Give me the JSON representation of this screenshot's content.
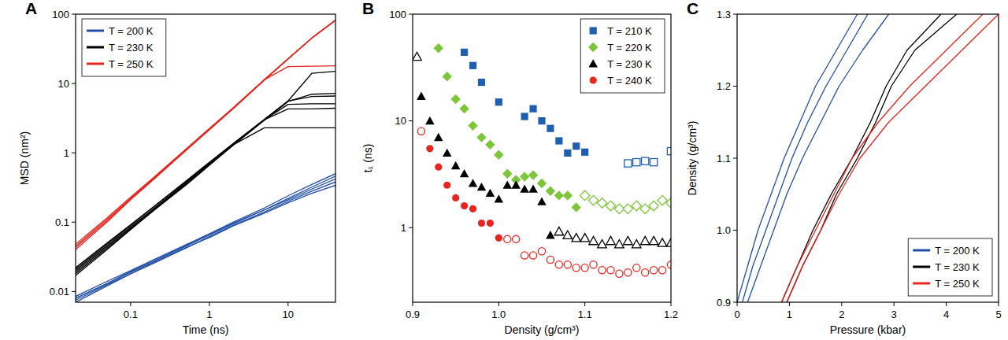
{
  "chart_data": [
    {
      "type": "line",
      "title": "A",
      "x_label": "Time (ns)",
      "y_label": "MSD (nm²)",
      "log": true,
      "xlim": [
        0.02,
        40
      ],
      "ylim": [
        0.007,
        100
      ],
      "xticks": [
        0.1,
        1,
        10
      ],
      "yticks": [
        0.01,
        0.1,
        1,
        10,
        100
      ],
      "legend": "upper-left",
      "x": [
        0.02,
        0.05,
        0.1,
        0.2,
        0.5,
        1,
        2,
        5,
        10,
        20,
        40
      ],
      "series": [
        {
          "name": "T = 200 K",
          "color": "#2250a6",
          "values": [
            0.008,
            0.013,
            0.019,
            0.027,
            0.045,
            0.065,
            0.094,
            0.15,
            0.22,
            0.32,
            0.46
          ]
        },
        {
          "color": "#2250a6",
          "values": [
            0.007,
            0.012,
            0.018,
            0.026,
            0.042,
            0.062,
            0.09,
            0.14,
            0.2,
            0.28,
            0.38
          ]
        },
        {
          "color": "#2250a6",
          "values": [
            0.0085,
            0.014,
            0.02,
            0.029,
            0.047,
            0.068,
            0.1,
            0.16,
            0.24,
            0.35,
            0.5
          ]
        },
        {
          "color": "#2250a6",
          "values": [
            0.0075,
            0.0125,
            0.018,
            0.026,
            0.043,
            0.06,
            0.088,
            0.135,
            0.19,
            0.26,
            0.34
          ]
        },
        {
          "color": "#2250a6",
          "values": [
            0.008,
            0.013,
            0.0195,
            0.028,
            0.046,
            0.067,
            0.097,
            0.15,
            0.21,
            0.3,
            0.42
          ]
        },
        {
          "name": "T = 230 K",
          "color": "#000000",
          "values": [
            0.018,
            0.042,
            0.08,
            0.15,
            0.35,
            0.68,
            1.3,
            3.0,
            5.6,
            14,
            15
          ]
        },
        {
          "color": "#000000",
          "values": [
            0.02,
            0.046,
            0.086,
            0.16,
            0.37,
            0.7,
            1.3,
            2.3,
            2.3,
            2.3,
            2.3
          ]
        },
        {
          "color": "#000000",
          "values": [
            0.021,
            0.048,
            0.09,
            0.17,
            0.38,
            0.72,
            1.35,
            3.0,
            4.3,
            4.3,
            4.4
          ]
        },
        {
          "color": "#000000",
          "values": [
            0.019,
            0.044,
            0.083,
            0.155,
            0.36,
            0.69,
            1.3,
            3.0,
            5.0,
            5.1,
            5.1
          ]
        },
        {
          "color": "#000000",
          "values": [
            0.022,
            0.05,
            0.092,
            0.17,
            0.39,
            0.73,
            1.36,
            3.05,
            5.6,
            6.5,
            6.6
          ]
        },
        {
          "color": "#000000",
          "values": [
            0.017,
            0.04,
            0.078,
            0.15,
            0.34,
            0.66,
            1.28,
            2.95,
            5.5,
            7.0,
            7.2
          ]
        },
        {
          "name": "T = 250 K",
          "color": "#e8251f",
          "values": [
            0.04,
            0.1,
            0.21,
            0.42,
            1.07,
            2.15,
            4.3,
            11.2,
            22.5,
            45,
            82
          ]
        },
        {
          "color": "#e8251f",
          "values": [
            0.045,
            0.11,
            0.22,
            0.44,
            1.1,
            2.2,
            4.4,
            11.3,
            22.6,
            45,
            81
          ]
        },
        {
          "color": "#e8251f",
          "values": [
            0.048,
            0.115,
            0.23,
            0.45,
            1.12,
            2.25,
            4.45,
            11.4,
            22.8,
            45.5,
            82
          ]
        },
        {
          "color": "#e8251f",
          "values": [
            0.043,
            0.105,
            0.215,
            0.43,
            1.08,
            2.18,
            4.35,
            11.3,
            17.5,
            17.8,
            18
          ]
        }
      ]
    },
    {
      "type": "scatter",
      "title": "B",
      "x_label": "Density (g/cm³)",
      "y_label": "t₁ (ns)",
      "log": "y",
      "xlim": [
        0.9,
        1.2
      ],
      "ylim": [
        0.2,
        100
      ],
      "xticks": [
        0.9,
        {
          "value": 1,
          "label": "1.0"
        },
        1.1,
        1.2
      ],
      "yticks": [
        1,
        10,
        100
      ],
      "legend": "upper-right",
      "series": [
        {
          "name": "T = 210 K",
          "color": "#1f5fb0",
          "marker": "square",
          "x": [
            0.96,
            0.97,
            0.98,
            1.0,
            1.03,
            1.04,
            1.05,
            1.06,
            1.07,
            1.08,
            1.09,
            1.1
          ],
          "values": [
            44,
            33,
            23,
            15,
            11,
            13,
            10,
            8.5,
            6.5,
            5,
            5.8,
            5.1
          ]
        },
        {
          "color": "#1f5fb0",
          "marker": "square-open",
          "x": [
            1.15,
            1.16,
            1.17,
            1.18,
            1.2
          ],
          "values": [
            4,
            4.1,
            4.2,
            4.1,
            5.2
          ]
        },
        {
          "name": "T = 220 K",
          "color": "#7dc63a",
          "marker": "diamond",
          "x": [
            0.93,
            0.94,
            0.95,
            0.96,
            0.97,
            0.98,
            0.99,
            1.0,
            1.01,
            1.02,
            1.03,
            1.04,
            1.05,
            1.06,
            1.07,
            1.08,
            1.09
          ],
          "values": [
            48,
            26,
            16,
            13,
            9,
            7,
            6,
            4.8,
            3.2,
            2.8,
            3.0,
            3.1,
            2.6,
            2.2,
            2.0,
            2.0,
            1.55
          ]
        },
        {
          "color": "#7dc63a",
          "marker": "diamond-open",
          "x": [
            1.1,
            1.11,
            1.12,
            1.13,
            1.14,
            1.15,
            1.16,
            1.17,
            1.18,
            1.19,
            1.2
          ],
          "values": [
            2.0,
            1.8,
            1.7,
            1.6,
            1.5,
            1.5,
            1.6,
            1.5,
            1.6,
            1.8,
            1.7
          ]
        },
        {
          "name": "T = 230 K",
          "color": "#000000",
          "marker": "triangle",
          "x": [
            0.91,
            0.92,
            0.93,
            0.94,
            0.95,
            0.96,
            0.97,
            0.98,
            0.99,
            1.0,
            1.01,
            1.02,
            1.03,
            1.04,
            1.05,
            1.06
          ],
          "values": [
            17,
            10,
            7,
            5,
            3.8,
            3.2,
            2.6,
            2.4,
            2.1,
            1.85,
            2.5,
            2.5,
            2.3,
            2.3,
            1.75,
            0.85
          ]
        },
        {
          "color": "#000000",
          "marker": "triangle-open",
          "x": [
            0.905,
            1.07,
            1.08,
            1.09,
            1.1,
            1.11,
            1.12,
            1.13,
            1.14,
            1.15,
            1.16,
            1.17,
            1.18,
            1.19,
            1.2
          ],
          "values": [
            40,
            0.92,
            0.85,
            0.8,
            0.8,
            0.75,
            0.7,
            0.75,
            0.7,
            0.75,
            0.7,
            0.75,
            0.75,
            0.72,
            0.72
          ]
        },
        {
          "name": "T = 240 K",
          "color": "#e8251f",
          "marker": "circle",
          "x": [
            0.92,
            0.93,
            0.94,
            0.95,
            0.96,
            0.97,
            0.98,
            0.99,
            1.0
          ],
          "values": [
            5.5,
            3.7,
            2.5,
            1.9,
            1.6,
            1.5,
            1.1,
            1.1,
            0.8
          ]
        },
        {
          "color": "#e8251f",
          "marker": "circle-open",
          "x": [
            0.91,
            1.01,
            1.02,
            1.03,
            1.04,
            1.05,
            1.06,
            1.07,
            1.08,
            1.09,
            1.1,
            1.11,
            1.12,
            1.13,
            1.14,
            1.15,
            1.16,
            1.17,
            1.18,
            1.19,
            1.2
          ],
          "values": [
            8,
            0.78,
            0.78,
            0.55,
            0.55,
            0.6,
            0.5,
            0.45,
            0.45,
            0.42,
            0.42,
            0.45,
            0.4,
            0.4,
            0.37,
            0.38,
            0.42,
            0.38,
            0.4,
            0.4,
            0.45
          ]
        }
      ]
    },
    {
      "type": "line",
      "title": "C",
      "x_label": "Pressure (kbar)",
      "y_label": "Density (g/cm³)",
      "xlim": [
        0,
        5
      ],
      "ylim": [
        0.9,
        1.3
      ],
      "xticks": [
        0,
        1,
        2,
        3,
        4,
        5
      ],
      "yticks": [
        0.9,
        {
          "value": 1,
          "label": "1.0"
        },
        1.1,
        1.2,
        1.3
      ],
      "legend": "lower-right",
      "series": [
        {
          "name": "T = 200 K",
          "color": "#2250a6",
          "x": [
            0.0,
            0.2,
            0.4,
            0.65,
            0.9,
            1.2,
            1.5,
            1.9,
            2.3
          ],
          "values": [
            0.9,
            0.95,
            1.0,
            1.05,
            1.1,
            1.15,
            1.2,
            1.25,
            1.3
          ]
        },
        {
          "color": "#2250a6",
          "x": [
            0.1,
            0.3,
            0.55,
            0.8,
            1.05,
            1.35,
            1.7,
            2.1,
            2.5
          ],
          "values": [
            0.9,
            0.95,
            1.0,
            1.05,
            1.1,
            1.15,
            1.2,
            1.25,
            1.3
          ]
        },
        {
          "color": "#2250a6",
          "x": [
            0.2,
            0.45,
            0.7,
            0.95,
            1.25,
            1.6,
            1.95,
            2.4,
            2.9
          ],
          "values": [
            0.9,
            0.95,
            1.0,
            1.05,
            1.1,
            1.15,
            1.2,
            1.25,
            1.3
          ]
        },
        {
          "name": "T = 230 K",
          "color": "#000000",
          "x": [
            0.85,
            1.15,
            1.45,
            1.8,
            2.2,
            2.55,
            2.85,
            3.25,
            3.9
          ],
          "values": [
            0.9,
            0.95,
            1.0,
            1.05,
            1.1,
            1.15,
            1.2,
            1.25,
            1.3
          ]
        },
        {
          "color": "#000000",
          "x": [
            0.95,
            1.25,
            1.6,
            1.9,
            2.3,
            2.65,
            2.95,
            3.4,
            4.2
          ],
          "values": [
            0.9,
            0.95,
            1.0,
            1.05,
            1.1,
            1.15,
            1.2,
            1.25,
            1.3
          ]
        },
        {
          "name": "T = 250 K",
          "color": "#e8251f",
          "x": [
            0.85,
            1.15,
            1.5,
            1.85,
            2.2,
            2.7,
            3.3,
            4.0,
            4.7
          ],
          "values": [
            0.9,
            0.95,
            1.0,
            1.05,
            1.1,
            1.15,
            1.2,
            1.25,
            1.3
          ]
        },
        {
          "color": "#e8251f",
          "x": [
            0.95,
            1.25,
            1.6,
            1.95,
            2.35,
            2.9,
            3.6,
            4.3,
            5.0
          ],
          "values": [
            0.9,
            0.95,
            1.0,
            1.05,
            1.1,
            1.15,
            1.2,
            1.25,
            1.3
          ]
        }
      ]
    }
  ]
}
